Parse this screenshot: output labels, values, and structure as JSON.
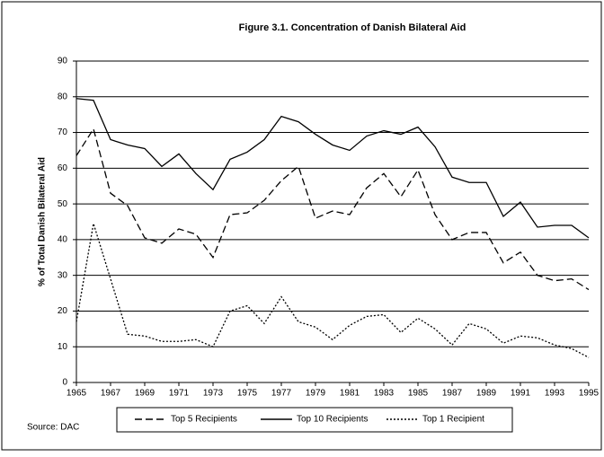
{
  "chart_data": {
    "type": "line",
    "title": "Figure 3.1.  Concentration of Danish Bilateral Aid",
    "y_label": "% of Total Danish Bilateral Aid",
    "source": "Source: DAC",
    "x": [
      1965,
      1966,
      1967,
      1968,
      1969,
      1970,
      1971,
      1972,
      1973,
      1974,
      1975,
      1976,
      1977,
      1978,
      1979,
      1980,
      1981,
      1982,
      1983,
      1984,
      1985,
      1986,
      1987,
      1988,
      1989,
      1990,
      1991,
      1992,
      1993,
      1994,
      1995
    ],
    "xlim": [
      1965,
      1995
    ],
    "xticks": [
      1965,
      1967,
      1969,
      1971,
      1973,
      1975,
      1977,
      1979,
      1981,
      1983,
      1985,
      1987,
      1989,
      1991,
      1993,
      1995
    ],
    "ylim": [
      0,
      90
    ],
    "yticks": [
      0,
      10,
      20,
      30,
      40,
      50,
      60,
      70,
      80,
      90
    ],
    "grid": true,
    "legend": "bottom",
    "series": [
      {
        "name": "Top 5 Recipients",
        "color": "#000000",
        "dash": "dashed",
        "values": [
          63.5,
          71,
          53,
          49.5,
          40.5,
          39,
          43,
          41.5,
          35,
          47,
          47.5,
          51,
          56.5,
          60.5,
          46,
          48,
          47,
          54.5,
          58.5,
          52,
          59.5,
          47,
          40,
          42,
          42,
          33.5,
          36.5,
          30,
          28.5,
          29,
          26
        ]
      },
      {
        "name": "Top 10 Recipients",
        "color": "#000000",
        "dash": "solid",
        "values": [
          79.5,
          79,
          68,
          66.5,
          65.5,
          60.5,
          64,
          58.5,
          54,
          62.5,
          64.5,
          68,
          74.5,
          73,
          69.5,
          66.5,
          65,
          69,
          70.5,
          69.5,
          71.5,
          66,
          57.5,
          56,
          56,
          46.5,
          50.5,
          43.5,
          44,
          44,
          40.5
        ]
      },
      {
        "name": "Top 1 Recipient",
        "color": "#000000",
        "dash": "dotted",
        "values": [
          17,
          44.5,
          29,
          13.5,
          13,
          11.5,
          11.5,
          12,
          10,
          20,
          21.5,
          16.5,
          24,
          17,
          15.5,
          12,
          16,
          18.5,
          19,
          14,
          18,
          15,
          10.5,
          16.5,
          15,
          11,
          13,
          12.5,
          10.5,
          9.5,
          7
        ]
      }
    ]
  }
}
